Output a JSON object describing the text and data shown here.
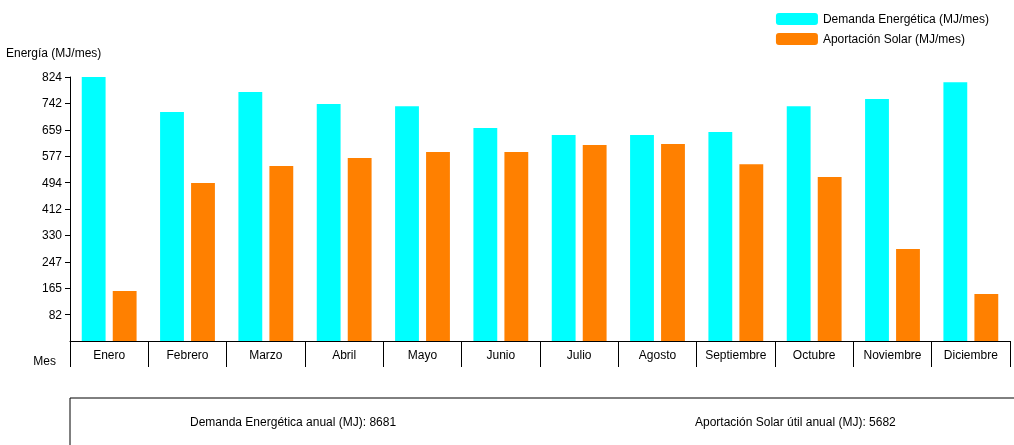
{
  "chart_data": {
    "type": "bar",
    "ylabel": "Energía (MJ/mes)",
    "xlabel": "Mes",
    "categories": [
      "Enero",
      "Febrero",
      "Marzo",
      "Abril",
      "Mayo",
      "Junio",
      "Julio",
      "Agosto",
      "Septiembre",
      "Octubre",
      "Noviembre",
      "Diciembre"
    ],
    "series": [
      {
        "name": "Demanda Energética (MJ/mes)",
        "color": "#00ffff",
        "values": [
          824,
          715,
          777,
          740,
          733,
          665,
          643,
          643,
          652,
          733,
          755,
          808
        ]
      },
      {
        "name": "Aportación Solar (MJ/mes)",
        "color": "#ff8000",
        "values": [
          156,
          493,
          546,
          571,
          590,
          590,
          612,
          615,
          552,
          512,
          287,
          147
        ]
      }
    ],
    "ylim": [
      0,
      824
    ],
    "yticks": [
      82,
      165,
      247,
      330,
      412,
      494,
      577,
      659,
      742,
      824
    ],
    "grid": false,
    "legend": "top right",
    "annotations": [
      "Demanda Energética anual (MJ): 8681",
      "Aportación Solar útil anual (MJ): 5682"
    ]
  }
}
